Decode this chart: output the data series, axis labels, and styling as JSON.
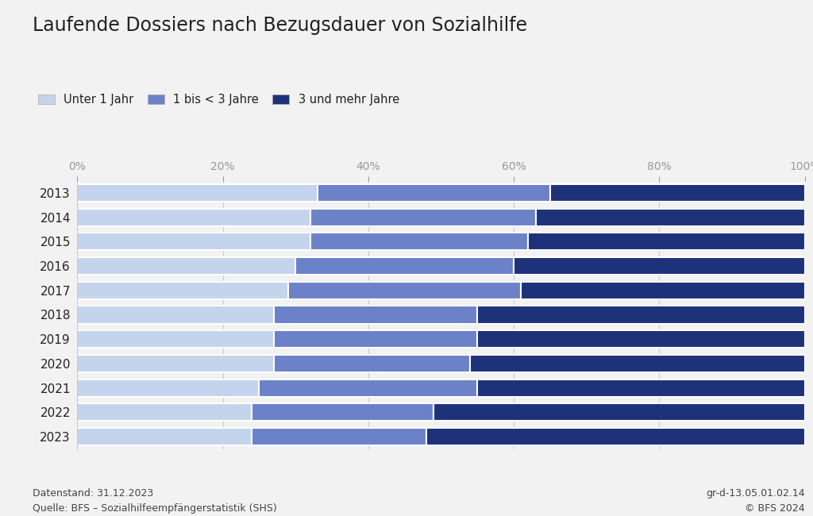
{
  "title": "Laufende Dossiers nach Bezugsdauer von Sozialhilfe",
  "years": [
    "2013",
    "2014",
    "2015",
    "2016",
    "2017",
    "2018",
    "2019",
    "2020",
    "2021",
    "2022",
    "2023"
  ],
  "segment1": [
    33,
    32,
    32,
    30,
    29,
    27,
    27,
    27,
    25,
    24,
    24
  ],
  "segment2": [
    32,
    31,
    30,
    30,
    32,
    28,
    28,
    27,
    30,
    25,
    24
  ],
  "segment3": [
    35,
    37,
    38,
    40,
    39,
    45,
    45,
    46,
    45,
    51,
    52
  ],
  "colors": [
    "#c5d4ed",
    "#6b82c8",
    "#1e3279"
  ],
  "legend_labels": [
    "Unter 1 Jahr",
    "1 bis < 3 Jahre",
    "3 und mehr Jahre"
  ],
  "footnote_left": "Datenstand: 31.12.2023\nQuelle: BFS – Sozialhilfeempfängerstatistik (SHS)",
  "footnote_right": "gr-d-13.05.01.02.14\n© BFS 2024",
  "background_color": "#f2f2f2",
  "bar_edge_color": "white",
  "tick_color": "#999999",
  "grid_color": "#cccccc",
  "text_color": "#222222",
  "footnote_color": "#444444"
}
